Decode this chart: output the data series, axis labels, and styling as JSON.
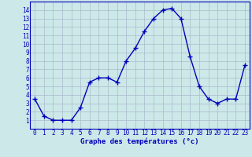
{
  "x": [
    0,
    1,
    2,
    3,
    4,
    5,
    6,
    7,
    8,
    9,
    10,
    11,
    12,
    13,
    14,
    15,
    16,
    17,
    18,
    19,
    20,
    21,
    22,
    23
  ],
  "y": [
    3.5,
    1.5,
    1.0,
    1.0,
    1.0,
    2.5,
    5.5,
    6.0,
    6.0,
    5.5,
    8.0,
    9.5,
    11.5,
    13.0,
    14.0,
    14.2,
    13.0,
    8.5,
    5.0,
    3.5,
    3.0,
    3.5,
    3.5,
    7.5
  ],
  "line_color": "#0000bb",
  "marker": "+",
  "marker_size": 4,
  "marker_lw": 1.0,
  "xlabel": "Graphe des températures (°c)",
  "xlim": [
    -0.5,
    23.5
  ],
  "ylim": [
    0,
    15
  ],
  "xticks": [
    0,
    1,
    2,
    3,
    4,
    5,
    6,
    7,
    8,
    9,
    10,
    11,
    12,
    13,
    14,
    15,
    16,
    17,
    18,
    19,
    20,
    21,
    22,
    23
  ],
  "yticks": [
    1,
    2,
    3,
    4,
    5,
    6,
    7,
    8,
    9,
    10,
    11,
    12,
    13,
    14
  ],
  "bg_color": "#cce8e8",
  "grid_color": "#aabbcc",
  "axis_color": "#0000bb",
  "tick_label_color": "#0000bb",
  "xlabel_color": "#0000bb",
  "xlabel_fontsize": 6.5,
  "tick_fontsize": 5.5,
  "linewidth": 1.0
}
